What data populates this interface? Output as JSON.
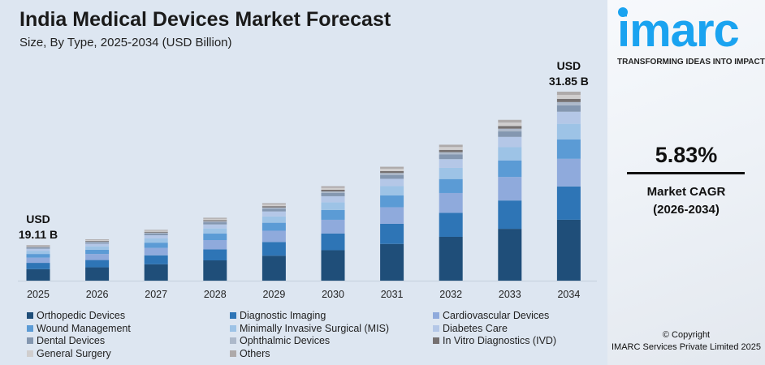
{
  "header": {
    "title": "India Medical Devices Market Forecast",
    "subtitle": "Size, By Type, 2025-2034 (USD Billion)"
  },
  "brand": {
    "logo_text": "imarc",
    "tagline": "TRANSFORMING IDEAS INTO IMPACT",
    "color": "#1aa3f0"
  },
  "cagr": {
    "value": "5.83%",
    "label": "Market CAGR",
    "period": "(2026-2034)"
  },
  "footer": {
    "copyright": "© Copyright",
    "company": "IMARC Services Private Limited 2025"
  },
  "chart_data": {
    "type": "bar",
    "stacked": true,
    "title": "India Medical Devices Market Forecast",
    "subtitle": "Size, By Type, 2025-2034 (USD Billion)",
    "categories": [
      "2025",
      "2026",
      "2027",
      "2028",
      "2029",
      "2030",
      "2031",
      "2032",
      "2033",
      "2034"
    ],
    "totals": [
      19.11,
      20.22,
      21.4,
      22.65,
      23.97,
      25.37,
      26.85,
      28.41,
      30.07,
      31.85
    ],
    "annotations": {
      "first": {
        "line1": "USD",
        "line2": "19.11 B"
      },
      "last": {
        "line1": "USD",
        "line2": "31.85 B"
      }
    },
    "legend_position": "bottom",
    "grid": false,
    "series": [
      {
        "name": "Orthopedic Devices",
        "color": "#1f4e79",
        "share": 0.322
      },
      {
        "name": "Diagnostic Imaging",
        "color": "#2e75b6",
        "share": 0.176
      },
      {
        "name": "Cardiovascular Devices",
        "color": "#8faadc",
        "share": 0.146
      },
      {
        "name": "Wound Management",
        "color": "#5b9bd5",
        "share": 0.103
      },
      {
        "name": "Minimally Invasive Surgical (MIS)",
        "color": "#9dc3e6",
        "share": 0.082
      },
      {
        "name": "Diabetes Care",
        "color": "#b4c7e7",
        "share": 0.064
      },
      {
        "name": "Dental Devices",
        "color": "#8497b0",
        "share": 0.034
      },
      {
        "name": "Ophthalmic Devices",
        "color": "#adb9ca",
        "share": 0.017
      },
      {
        "name": "In Vitro Diagnostics (IVD)",
        "color": "#767171",
        "share": 0.017
      },
      {
        "name": "General Surgery",
        "color": "#d0cece",
        "share": 0.021
      },
      {
        "name": "Others",
        "color": "#aeaaaa",
        "share": 0.017
      }
    ]
  }
}
